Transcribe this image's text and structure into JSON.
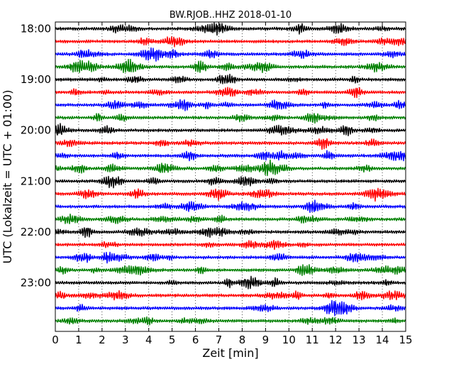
{
  "chart_data": {
    "type": "line",
    "title": "BW.RJOB..HHZ 2018-01-10",
    "xlabel": "Zeit  [min]",
    "ylabel": "UTC (Lokalzeit = UTC + 01:00)",
    "xlim": [
      0,
      15
    ],
    "x_ticks": [
      "0",
      "1",
      "2",
      "3",
      "4",
      "5",
      "6",
      "7",
      "8",
      "9",
      "10",
      "11",
      "12",
      "13",
      "14",
      "15"
    ],
    "y_ticks": [
      "18:00",
      "19:00",
      "20:00",
      "21:00",
      "22:00",
      "23:00"
    ],
    "grid": "vertical-dotted",
    "colors": [
      "#000000",
      "#ff0000",
      "#0000ff",
      "#008000"
    ],
    "traces": [
      {
        "start": "18:00",
        "color": "#000000"
      },
      {
        "start": "18:15",
        "color": "#ff0000"
      },
      {
        "start": "18:30",
        "color": "#0000ff"
      },
      {
        "start": "18:45",
        "color": "#008000"
      },
      {
        "start": "19:00",
        "color": "#000000"
      },
      {
        "start": "19:15",
        "color": "#ff0000"
      },
      {
        "start": "19:30",
        "color": "#0000ff"
      },
      {
        "start": "19:45",
        "color": "#008000"
      },
      {
        "start": "20:00",
        "color": "#000000"
      },
      {
        "start": "20:15",
        "color": "#ff0000"
      },
      {
        "start": "20:30",
        "color": "#0000ff"
      },
      {
        "start": "20:45",
        "color": "#008000"
      },
      {
        "start": "21:00",
        "color": "#000000"
      },
      {
        "start": "21:15",
        "color": "#ff0000"
      },
      {
        "start": "21:30",
        "color": "#0000ff"
      },
      {
        "start": "21:45",
        "color": "#008000"
      },
      {
        "start": "22:00",
        "color": "#000000"
      },
      {
        "start": "22:15",
        "color": "#ff0000"
      },
      {
        "start": "22:30",
        "color": "#0000ff"
      },
      {
        "start": "22:45",
        "color": "#008000"
      },
      {
        "start": "23:00",
        "color": "#000000"
      },
      {
        "start": "23:15",
        "color": "#ff0000"
      },
      {
        "start": "23:30",
        "color": "#0000ff"
      },
      {
        "start": "23:45",
        "color": "#008000"
      }
    ]
  }
}
